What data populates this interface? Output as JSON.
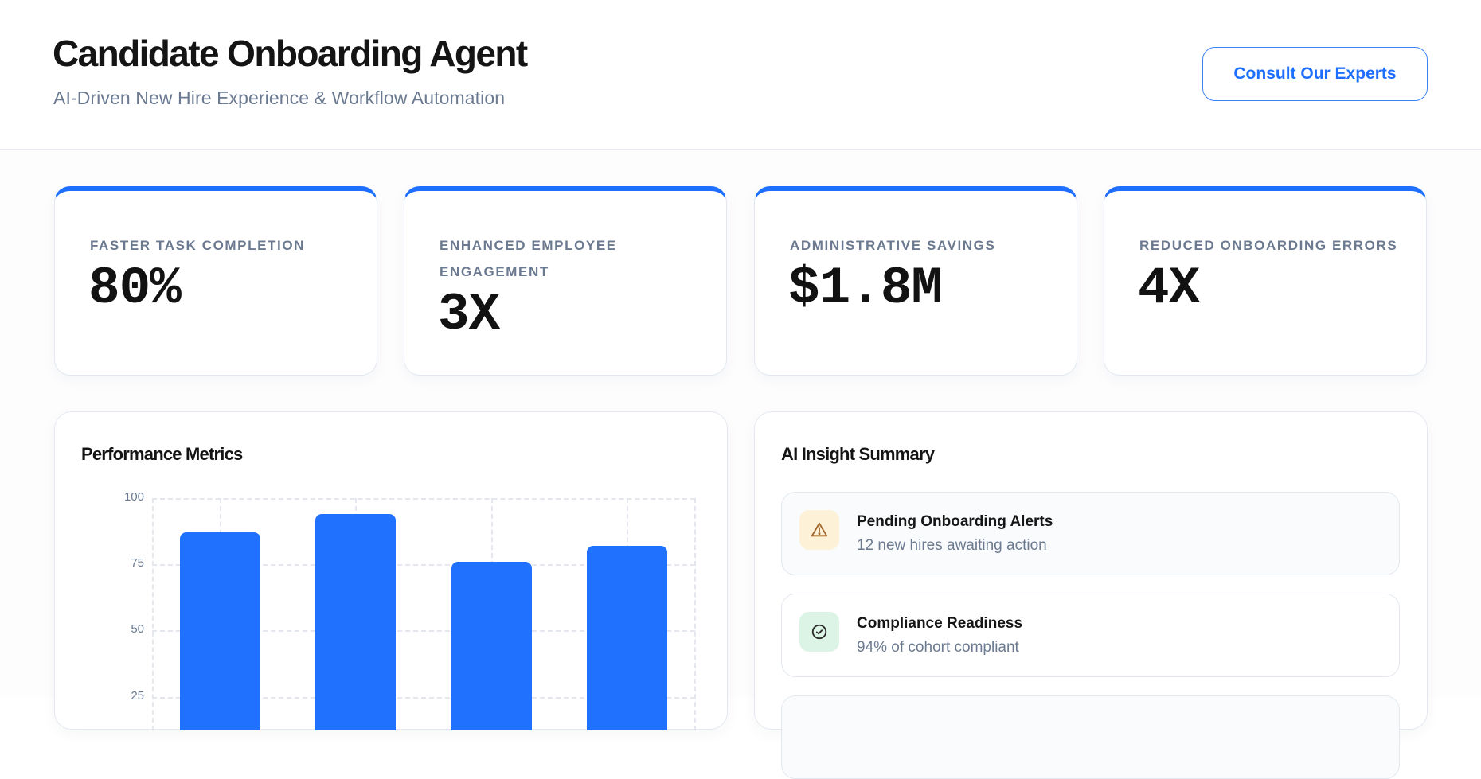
{
  "header": {
    "title": "Candidate Onboarding Agent",
    "subtitle": "AI-Driven New Hire Experience & Workflow Automation",
    "cta_label": "Consult Our Experts"
  },
  "colors": {
    "accent": "#1f6fff",
    "bar": "#2171ff",
    "muted_text": "#6b7a90",
    "warning_bg": "#fdf1d8",
    "warning_icon": "#a0652a",
    "success_bg": "#dcf4e6",
    "success_icon": "#2a2a2a"
  },
  "stats": [
    {
      "label": "FASTER TASK COMPLETION",
      "value": "80%"
    },
    {
      "label": "ENHANCED EMPLOYEE ENGAGEMENT",
      "value": "3X"
    },
    {
      "label": "ADMINISTRATIVE SAVINGS",
      "value": "$1.8M"
    },
    {
      "label": "REDUCED ONBOARDING ERRORS",
      "value": "4X"
    }
  ],
  "performance": {
    "title": "Performance Metrics"
  },
  "chart_data": {
    "type": "bar",
    "title": "Performance Metrics",
    "categories": [
      "",
      "",
      "",
      ""
    ],
    "values": [
      87,
      94,
      76,
      82
    ],
    "xlabel": "",
    "ylabel": "",
    "ylim": [
      0,
      100
    ],
    "yticks": [
      "100",
      "75",
      "50",
      "25"
    ],
    "grid": true,
    "grid_style": "dashed",
    "legend": null
  },
  "insights": {
    "title": "AI Insight Summary",
    "items": [
      {
        "icon": "warning-triangle-icon",
        "title": "Pending Onboarding Alerts",
        "subtitle": "12 new hires awaiting action"
      },
      {
        "icon": "check-circle-icon",
        "title": "Compliance Readiness",
        "subtitle": "94% of cohort compliant"
      }
    ]
  }
}
